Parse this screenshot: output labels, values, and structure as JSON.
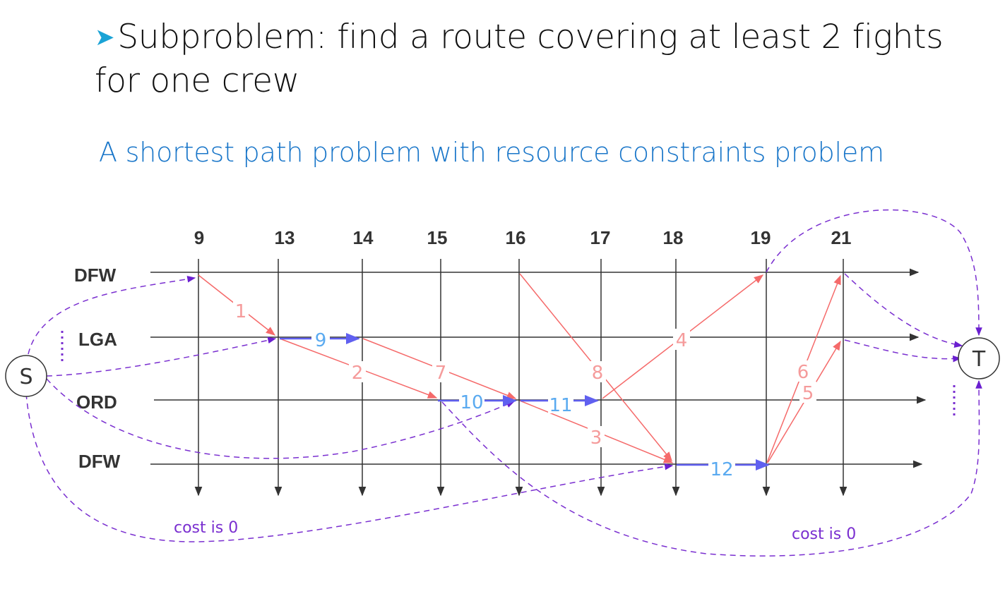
{
  "heading": {
    "bullet": "➤",
    "text": "Subproblem: find a route covering at least 2 fights for one crew"
  },
  "subheading": "A shortest path problem with resource constraints problem",
  "colors": {
    "flight": "#f56a6a",
    "ground": "#6060f0",
    "virtual": "#7a2fd0",
    "axis": "#333333",
    "subheading": "#1976c9"
  },
  "diagram": {
    "times": [
      "9",
      "13",
      "14",
      "15",
      "16",
      "17",
      "18",
      "19",
      "21"
    ],
    "airports": [
      "DFW",
      "LGA",
      "ORD",
      "DFW"
    ],
    "source": "S",
    "sink": "T",
    "flight_labels": [
      "1",
      "2",
      "3",
      "4",
      "5",
      "6",
      "7",
      "8"
    ],
    "ground_labels": [
      "9",
      "10",
      "11",
      "12"
    ],
    "cost_left": "cost is 0",
    "cost_right": "cost is 0"
  }
}
